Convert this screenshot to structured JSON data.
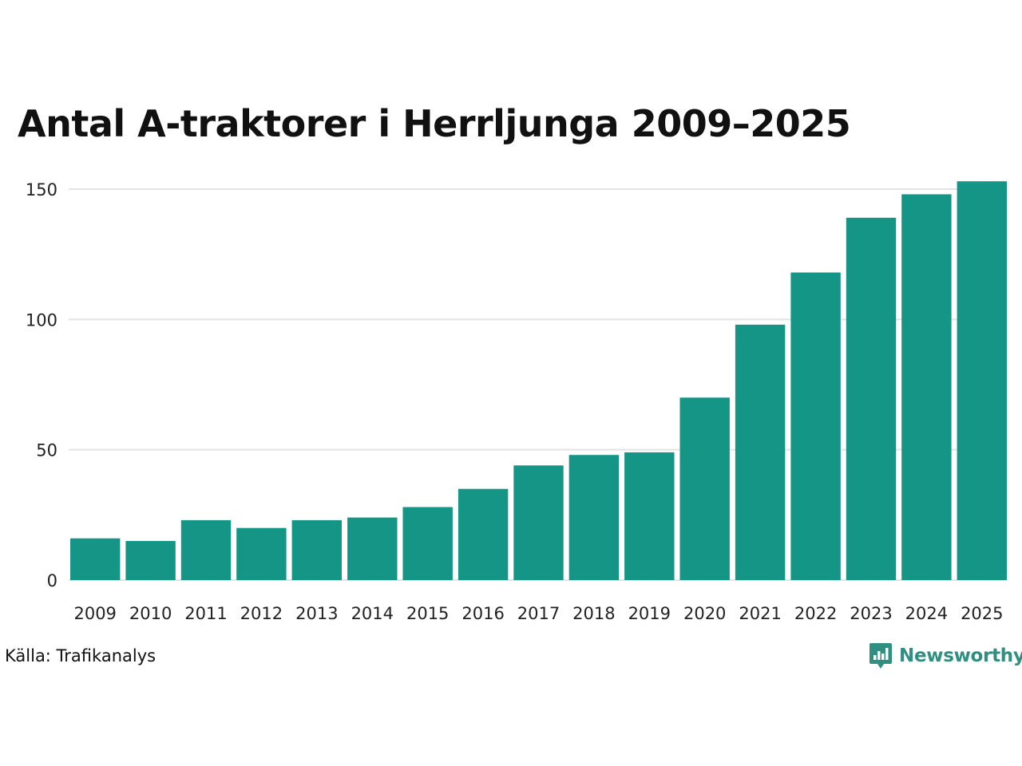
{
  "colors": {
    "bar": "#149585",
    "grid": "#e3e3e3",
    "logo": "#2f8f80"
  },
  "chart_data": {
    "type": "bar",
    "title": "Antal A-traktorer i Herrljunga 2009–2025",
    "categories": [
      "2009",
      "2010",
      "2011",
      "2012",
      "2013",
      "2014",
      "2015",
      "2016",
      "2017",
      "2018",
      "2019",
      "2020",
      "2021",
      "2022",
      "2023",
      "2024",
      "2025"
    ],
    "values": [
      16,
      15,
      23,
      20,
      23,
      24,
      28,
      35,
      44,
      48,
      49,
      70,
      98,
      118,
      139,
      148,
      153
    ],
    "ylim": [
      0,
      150
    ],
    "yticks": [
      0,
      50,
      100,
      150
    ],
    "xlabel": "",
    "ylabel": "",
    "grid": true
  },
  "source": "Källa: Trafikanalys",
  "logo": {
    "text": "Newsworthy",
    "icon": "newsworthy-chart-icon"
  }
}
